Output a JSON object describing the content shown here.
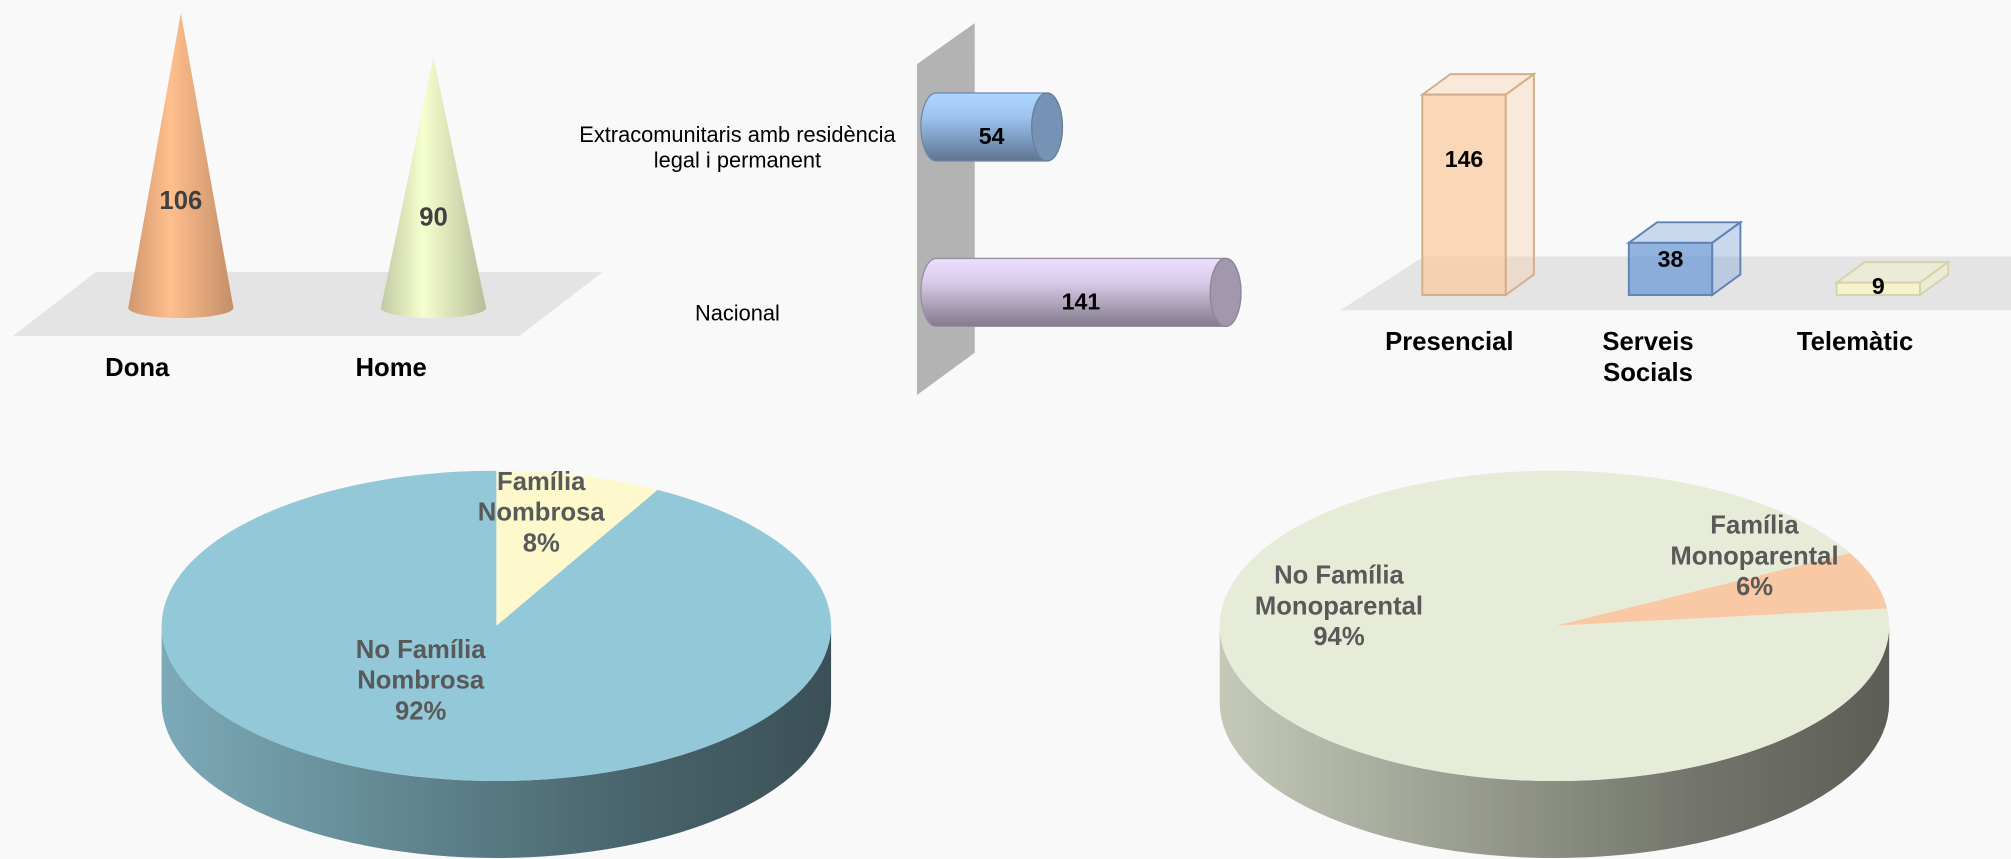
{
  "chart_data": [
    {
      "type": "bar",
      "shape": "cone",
      "categories": [
        "Dona",
        "Home"
      ],
      "values": [
        106,
        90
      ],
      "colors": [
        "#f4b183",
        "#e3ecbf"
      ]
    },
    {
      "type": "bar",
      "shape": "cylinder",
      "horizontal": true,
      "categories": [
        "Extracomunitaris amb residència legal i permanent",
        "Nacional"
      ],
      "values": [
        54,
        141
      ],
      "colors": [
        "#9dc3f0",
        "#d8cbe8"
      ]
    },
    {
      "type": "bar",
      "shape": "box",
      "categories": [
        "Presencial",
        "Serveis Socials",
        "Telemàtic"
      ],
      "values": [
        146,
        38,
        9
      ],
      "colors": [
        "#f8cba0",
        "#6f9ad6",
        "#fbf8c4"
      ]
    },
    {
      "type": "pie",
      "categories": [
        "Família Nombrosa",
        "No Família Nombrosa"
      ],
      "values": [
        8,
        92
      ],
      "value_labels": [
        "8%",
        "92%"
      ],
      "colors": [
        "#fdf9cd",
        "#92c8d8"
      ]
    },
    {
      "type": "pie",
      "categories": [
        "Família Monoparental",
        "No Família Monoparental"
      ],
      "values": [
        6,
        94
      ],
      "value_labels": [
        "6%",
        "94%"
      ],
      "colors": [
        "#f9c9a6",
        "#e6ecd8"
      ]
    }
  ]
}
